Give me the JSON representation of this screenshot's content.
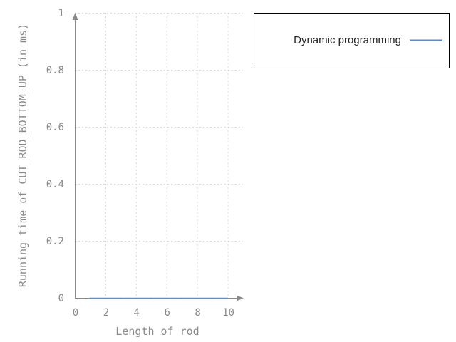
{
  "chart_data": {
    "type": "line",
    "title": "",
    "xlabel": "Length of rod",
    "ylabel": "Running time of CUT_ROD_BOTTOM_UP (in ms)",
    "xlim": [
      0,
      11
    ],
    "ylim": [
      0,
      1
    ],
    "x_ticks": [
      0,
      2,
      4,
      6,
      8,
      10
    ],
    "y_ticks": [
      0,
      0.2,
      0.4,
      0.6,
      0.8,
      1
    ],
    "x_tick_labels": [
      "0",
      "2",
      "4",
      "6",
      "8",
      "10"
    ],
    "y_tick_labels": [
      "0",
      "0.2",
      "0.4",
      "0.6",
      "0.8",
      "1"
    ],
    "grid": true,
    "legend_position": "right",
    "series": [
      {
        "name": "Dynamic programming",
        "x": [
          1,
          2,
          3,
          4,
          5,
          6,
          7,
          8,
          9,
          10
        ],
        "values": [
          0,
          0,
          0,
          0,
          0,
          0,
          0,
          0,
          0,
          0
        ],
        "color": "#5b8bd9"
      }
    ]
  }
}
